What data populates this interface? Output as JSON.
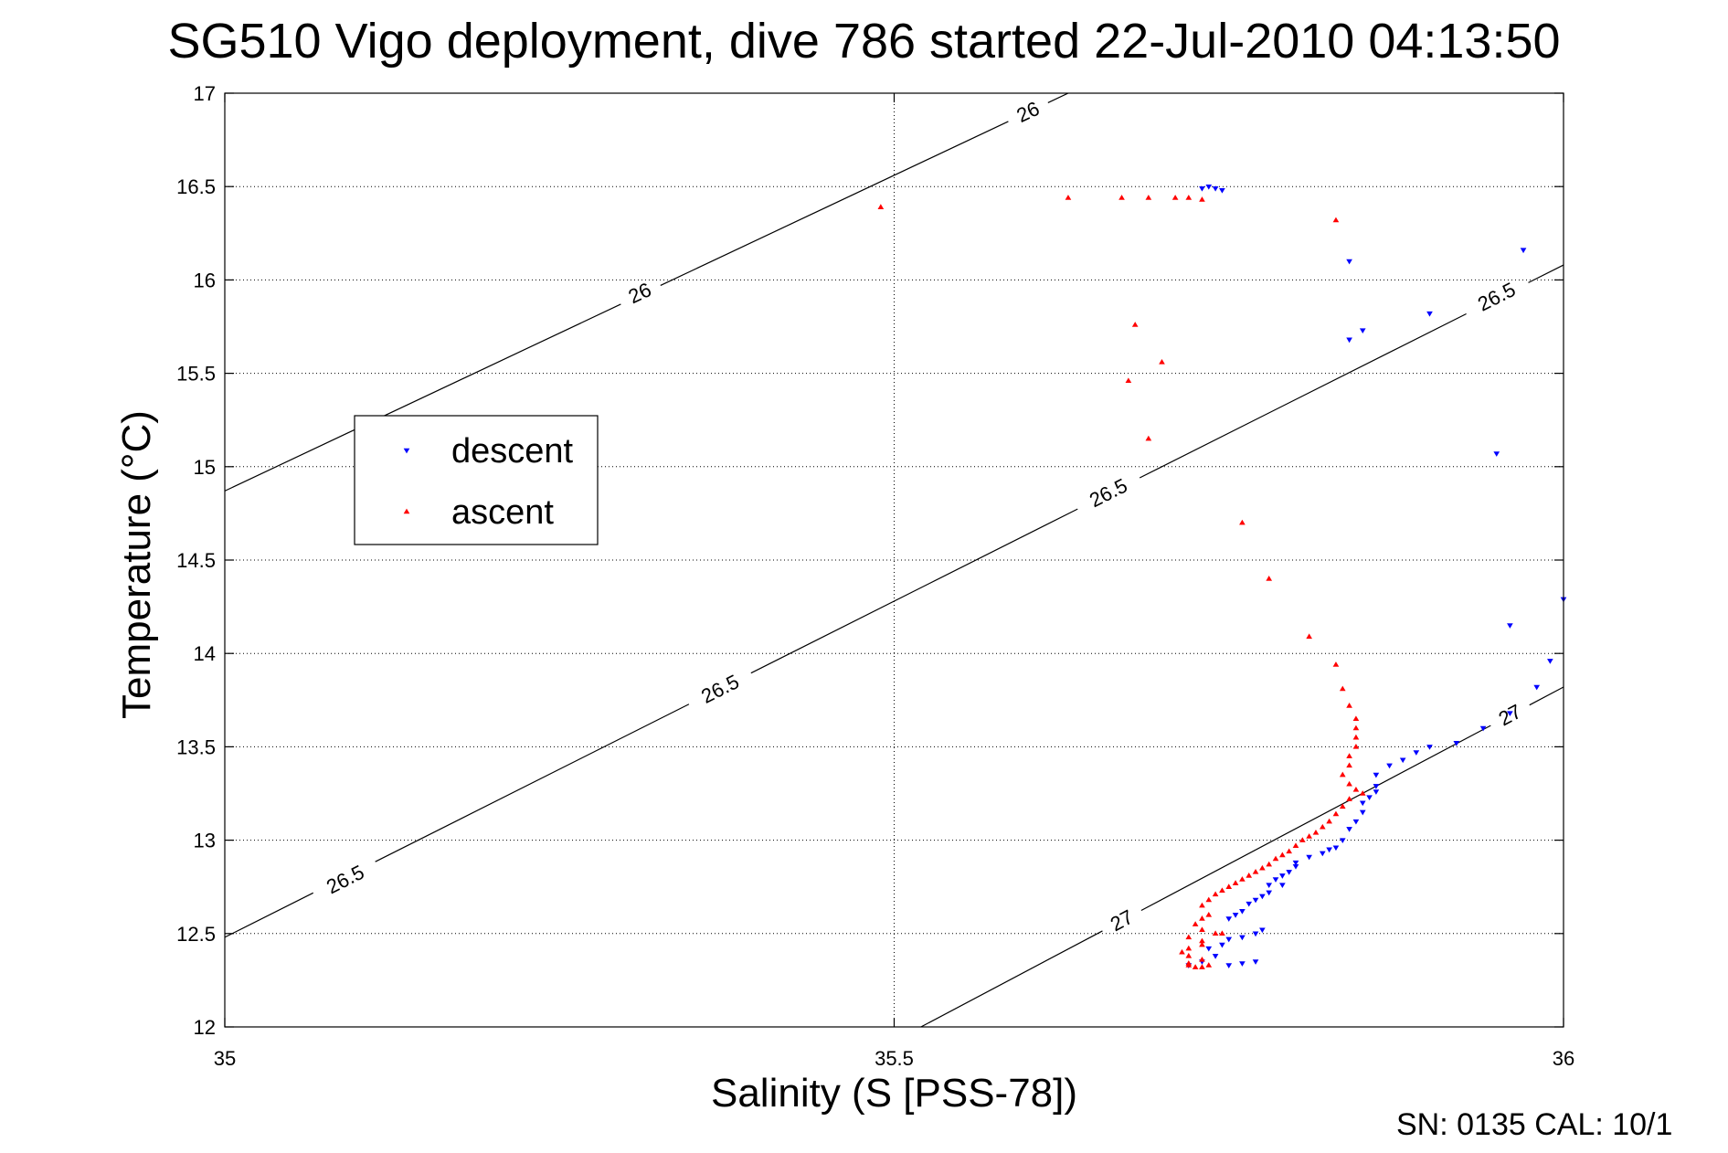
{
  "title": "SG510 Vigo deployment, dive 786 started 22-Jul-2010 04:13:50",
  "footer": "SN: 0135  CAL: 10/1",
  "colors": {
    "descent": "#0000ff",
    "ascent": "#ff0000",
    "axis": "#000000",
    "grid": "#000000"
  },
  "chart_data": {
    "type": "scatter",
    "title": "SG510 Vigo deployment, dive 786 started 22-Jul-2010 04:13:50",
    "xlabel": "Salinity (S [PSS-78])",
    "ylabel": "Temperature (°C)",
    "xlim": [
      35,
      36
    ],
    "ylim": [
      12,
      17
    ],
    "xticks": [
      35,
      35.5,
      36
    ],
    "xtick_labels": [
      "35",
      "35.5",
      "36"
    ],
    "yticks": [
      12,
      12.5,
      13,
      13.5,
      14,
      14.5,
      15,
      15.5,
      16,
      16.5,
      17
    ],
    "ytick_labels": [
      "12",
      "12.5",
      "13",
      "13.5",
      "14",
      "14.5",
      "15",
      "15.5",
      "16",
      "16.5",
      "17"
    ],
    "grid": true,
    "legend": {
      "placement": "left",
      "entries": [
        "descent",
        "ascent"
      ]
    },
    "isopycnals": [
      {
        "level": "26",
        "points": [
          [
            35.0,
            14.87
          ],
          [
            35.63,
            17.0
          ]
        ],
        "labels": [
          {
            "text": "26",
            "x": 35.31,
            "y": 15.93
          },
          {
            "text": "26",
            "x": 35.6,
            "y": 16.9
          }
        ]
      },
      {
        "level": "26.5",
        "points": [
          [
            35.0,
            12.48
          ],
          [
            36.0,
            16.08
          ]
        ],
        "labels": [
          {
            "text": "26.5",
            "x": 35.09,
            "y": 12.79
          },
          {
            "text": "26.5",
            "x": 35.37,
            "y": 13.81
          },
          {
            "text": "26.5",
            "x": 35.66,
            "y": 14.86
          },
          {
            "text": "26.5",
            "x": 35.95,
            "y": 15.91
          }
        ]
      },
      {
        "level": "27",
        "points": [
          [
            35.52,
            12.0
          ],
          [
            36.0,
            13.82
          ]
        ],
        "labels": [
          {
            "text": "27",
            "x": 35.67,
            "y": 12.57
          },
          {
            "text": "27",
            "x": 35.96,
            "y": 13.67
          }
        ]
      }
    ],
    "series": [
      {
        "name": "descent",
        "points": [
          [
            35.73,
            16.49
          ],
          [
            35.735,
            16.5
          ],
          [
            35.74,
            16.49
          ],
          [
            35.745,
            16.48
          ],
          [
            35.84,
            16.1
          ],
          [
            35.97,
            16.16
          ],
          [
            35.9,
            15.82
          ],
          [
            35.85,
            15.73
          ],
          [
            35.84,
            15.68
          ],
          [
            35.95,
            15.07
          ],
          [
            36.0,
            14.29
          ],
          [
            35.96,
            14.15
          ],
          [
            35.99,
            13.96
          ],
          [
            35.98,
            13.82
          ],
          [
            35.96,
            13.68
          ],
          [
            35.94,
            13.6
          ],
          [
            35.92,
            13.52
          ],
          [
            35.9,
            13.5
          ],
          [
            35.89,
            13.47
          ],
          [
            35.88,
            13.43
          ],
          [
            35.87,
            13.4
          ],
          [
            35.86,
            13.35
          ],
          [
            35.86,
            13.29
          ],
          [
            35.86,
            13.26
          ],
          [
            35.855,
            13.23
          ],
          [
            35.85,
            13.2
          ],
          [
            35.85,
            13.15
          ],
          [
            35.845,
            13.1
          ],
          [
            35.84,
            13.06
          ],
          [
            35.835,
            13.0
          ],
          [
            35.83,
            12.96
          ],
          [
            35.825,
            12.95
          ],
          [
            35.82,
            12.93
          ],
          [
            35.81,
            12.91
          ],
          [
            35.8,
            12.88
          ],
          [
            35.8,
            12.86
          ],
          [
            35.795,
            12.83
          ],
          [
            35.79,
            12.81
          ],
          [
            35.785,
            12.79
          ],
          [
            35.78,
            12.76
          ],
          [
            35.79,
            12.76
          ],
          [
            35.78,
            12.72
          ],
          [
            35.775,
            12.7
          ],
          [
            35.77,
            12.68
          ],
          [
            35.765,
            12.66
          ],
          [
            35.76,
            12.62
          ],
          [
            35.755,
            12.6
          ],
          [
            35.75,
            12.58
          ],
          [
            35.775,
            12.52
          ],
          [
            35.77,
            12.5
          ],
          [
            35.76,
            12.48
          ],
          [
            35.75,
            12.47
          ],
          [
            35.745,
            12.44
          ],
          [
            35.735,
            12.42
          ],
          [
            35.74,
            12.38
          ],
          [
            35.73,
            12.35
          ],
          [
            35.77,
            12.35
          ],
          [
            35.75,
            12.33
          ],
          [
            35.76,
            12.34
          ],
          [
            35.72,
            12.33
          ]
        ]
      },
      {
        "name": "ascent",
        "points": [
          [
            35.49,
            16.39
          ],
          [
            35.63,
            16.44
          ],
          [
            35.67,
            16.44
          ],
          [
            35.69,
            16.44
          ],
          [
            35.71,
            16.44
          ],
          [
            35.72,
            16.44
          ],
          [
            35.73,
            16.43
          ],
          [
            35.83,
            16.32
          ],
          [
            35.68,
            15.76
          ],
          [
            35.7,
            15.56
          ],
          [
            35.675,
            15.46
          ],
          [
            35.69,
            15.15
          ],
          [
            35.76,
            14.7
          ],
          [
            35.78,
            14.4
          ],
          [
            35.81,
            14.09
          ],
          [
            35.83,
            13.94
          ],
          [
            35.835,
            13.81
          ],
          [
            35.84,
            13.72
          ],
          [
            35.845,
            13.65
          ],
          [
            35.845,
            13.6
          ],
          [
            35.845,
            13.55
          ],
          [
            35.845,
            13.5
          ],
          [
            35.84,
            13.45
          ],
          [
            35.84,
            13.4
          ],
          [
            35.835,
            13.35
          ],
          [
            35.84,
            13.3
          ],
          [
            35.845,
            13.27
          ],
          [
            35.85,
            13.25
          ],
          [
            35.84,
            13.22
          ],
          [
            35.835,
            13.18
          ],
          [
            35.83,
            13.14
          ],
          [
            35.825,
            13.1
          ],
          [
            35.82,
            13.07
          ],
          [
            35.815,
            13.04
          ],
          [
            35.81,
            13.02
          ],
          [
            35.805,
            13.0
          ],
          [
            35.8,
            12.97
          ],
          [
            35.795,
            12.94
          ],
          [
            35.79,
            12.92
          ],
          [
            35.785,
            12.9
          ],
          [
            35.78,
            12.87
          ],
          [
            35.775,
            12.85
          ],
          [
            35.77,
            12.83
          ],
          [
            35.765,
            12.81
          ],
          [
            35.76,
            12.79
          ],
          [
            35.755,
            12.77
          ],
          [
            35.75,
            12.75
          ],
          [
            35.745,
            12.73
          ],
          [
            35.74,
            12.71
          ],
          [
            35.735,
            12.68
          ],
          [
            35.73,
            12.65
          ],
          [
            35.735,
            12.6
          ],
          [
            35.73,
            12.58
          ],
          [
            35.725,
            12.55
          ],
          [
            35.73,
            12.52
          ],
          [
            35.74,
            12.5
          ],
          [
            35.745,
            12.5
          ],
          [
            35.72,
            12.48
          ],
          [
            35.73,
            12.46
          ],
          [
            35.73,
            12.44
          ],
          [
            35.72,
            12.42
          ],
          [
            35.715,
            12.4
          ],
          [
            35.72,
            12.38
          ],
          [
            35.73,
            12.36
          ],
          [
            35.72,
            12.34
          ],
          [
            35.735,
            12.33
          ],
          [
            35.725,
            12.32
          ],
          [
            35.73,
            12.32
          ],
          [
            35.72,
            12.33
          ]
        ]
      }
    ]
  }
}
